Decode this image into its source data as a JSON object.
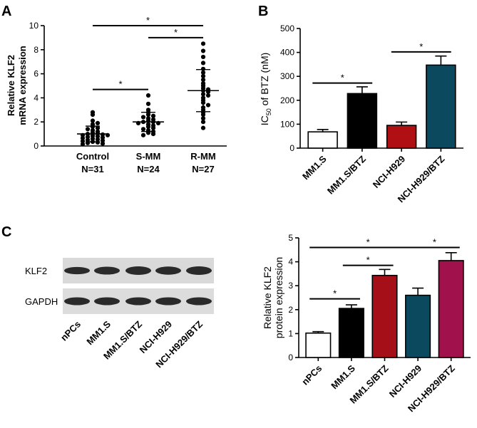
{
  "panels": {
    "A": {
      "letter": "A"
    },
    "B": {
      "letter": "B"
    },
    "C": {
      "letter": "C"
    }
  },
  "western_blot": {
    "rows": [
      "KLF2",
      "GAPDH"
    ],
    "lanes": [
      "nPCs",
      "MM1.S",
      "MM1.S/BTZ",
      "NCI-H929",
      "NCI-H929/BTZ"
    ]
  },
  "chart_data": [
    {
      "id": "A",
      "type": "scatter",
      "ylabel": [
        "Relative KLF2",
        "mRNA expression"
      ],
      "ylim": [
        0,
        10
      ],
      "yticks": [
        "0",
        "2",
        "4",
        "6",
        "8",
        "10"
      ],
      "categories": [
        "Control",
        "S-MM",
        "R-MM"
      ],
      "sublabels": [
        "N=31",
        "N=24",
        "N=27"
      ],
      "means": [
        1.0,
        2.0,
        4.6
      ],
      "sd": [
        0.65,
        0.8,
        1.75
      ],
      "points": [
        [
          2.8,
          2.6,
          2.1,
          1.9,
          1.8,
          1.6,
          1.5,
          1.4,
          1.3,
          1.2,
          1.1,
          1.05,
          1.0,
          0.95,
          0.9,
          0.9,
          0.85,
          0.8,
          0.75,
          0.7,
          0.65,
          0.6,
          0.55,
          0.5,
          0.45,
          0.4,
          0.35,
          0.3,
          0.25,
          0.2,
          0.15
        ],
        [
          4.2,
          3.5,
          3.0,
          2.8,
          2.6,
          2.5,
          2.4,
          2.3,
          2.2,
          2.1,
          2.0,
          2.0,
          1.9,
          1.9,
          1.8,
          1.7,
          1.6,
          1.5,
          1.4,
          1.3,
          1.2,
          1.1,
          1.0,
          0.9
        ],
        [
          8.5,
          7.9,
          7.4,
          6.9,
          6.4,
          6.1,
          5.8,
          5.5,
          5.2,
          5.0,
          4.8,
          4.7,
          4.6,
          4.5,
          4.3,
          4.2,
          4.0,
          3.8,
          3.6,
          3.4,
          3.2,
          3.0,
          2.8,
          2.6,
          2.3,
          2.0,
          1.5
        ]
      ],
      "significance": [
        {
          "from": 0,
          "to": 1,
          "y": 4.7,
          "label": "*"
        },
        {
          "from": 1,
          "to": 2,
          "y": 9.0,
          "label": "*"
        },
        {
          "from": 0,
          "to": 2,
          "y": 10.0,
          "label": "*"
        }
      ]
    },
    {
      "id": "B",
      "type": "bar",
      "ylabel_main": "IC",
      "ylabel_sub": "50",
      "ylabel_rest": " of BTZ (nM)",
      "ylim": [
        0,
        500
      ],
      "yticks": [
        "0",
        "100",
        "200",
        "300",
        "400",
        "500"
      ],
      "categories": [
        "MM1.S",
        "MM1.S/BTZ",
        "NCI-H929",
        "NCI-H929/BTZ"
      ],
      "values": [
        68,
        228,
        95,
        347
      ],
      "errors": [
        10,
        28,
        14,
        38
      ],
      "colors": [
        "#ffffff",
        "#000000",
        "#b00f14",
        "#0b4a5e"
      ],
      "significance": [
        {
          "from": 0,
          "to": 1,
          "y": 272,
          "label": "*"
        },
        {
          "from": 2,
          "to": 3,
          "y": 402,
          "label": "*"
        }
      ]
    },
    {
      "id": "C",
      "type": "bar",
      "ylabel": [
        "Relative KLF2",
        "protein expression"
      ],
      "ylim": [
        0,
        5
      ],
      "yticks": [
        "0",
        "1",
        "2",
        "3",
        "4",
        "5"
      ],
      "categories": [
        "nPCs",
        "MM1.S",
        "MM1.S/BTZ",
        "NCI-H929",
        "NCI-H929/BTZ"
      ],
      "values": [
        1.02,
        2.05,
        3.43,
        2.6,
        4.05
      ],
      "errors": [
        0.06,
        0.15,
        0.25,
        0.3,
        0.33
      ],
      "colors": [
        "#ffffff",
        "#000000",
        "#a50f17",
        "#0b4a5e",
        "#a1124c"
      ],
      "significance": [
        {
          "from": 0,
          "to": 1,
          "y": 2.45,
          "label": "*"
        },
        {
          "from": 1,
          "to": 2,
          "y": 3.85,
          "label": "*"
        },
        {
          "from": 0,
          "to": 3,
          "y": 4.6,
          "label": "*"
        },
        {
          "from": 3,
          "to": 4,
          "y": 4.6,
          "label": "*"
        }
      ]
    }
  ]
}
